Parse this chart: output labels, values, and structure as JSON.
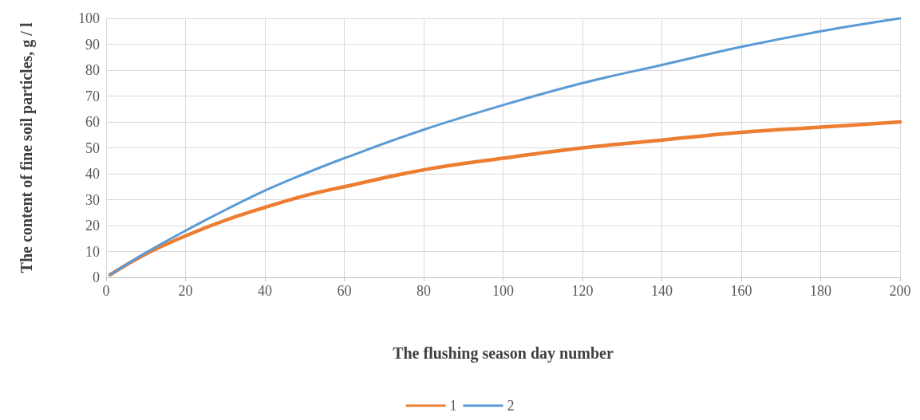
{
  "chart_data": {
    "type": "line",
    "xlabel": "The flushing season day number",
    "ylabel": "The content of fine soil particles, g / l",
    "xlim": [
      0,
      200
    ],
    "xticks": [
      0,
      20,
      40,
      60,
      80,
      100,
      120,
      140,
      160,
      180,
      200
    ],
    "ylim": [
      0,
      100
    ],
    "yticks": [
      0,
      10,
      20,
      30,
      40,
      50,
      60,
      70,
      80,
      90,
      100
    ],
    "grid": true,
    "legend": "bottom",
    "marker": "none",
    "line_style": "solid",
    "series": [
      {
        "name": "1",
        "color": "#ed7d31",
        "x": [
          1,
          10,
          20,
          30,
          40,
          50,
          60,
          80,
          100,
          120,
          140,
          160,
          180,
          200
        ],
        "values": [
          1,
          9,
          16,
          22,
          27,
          31.5,
          35,
          41.5,
          46,
          50,
          53,
          56,
          58,
          60
        ]
      },
      {
        "name": "2",
        "color": "#5b9bd5",
        "x": [
          1,
          10,
          20,
          30,
          40,
          50,
          60,
          80,
          100,
          120,
          140,
          160,
          180,
          200
        ],
        "values": [
          1,
          9.5,
          18,
          26,
          33.5,
          40,
          46,
          57,
          66.5,
          75,
          82,
          89,
          95,
          100
        ]
      }
    ]
  }
}
